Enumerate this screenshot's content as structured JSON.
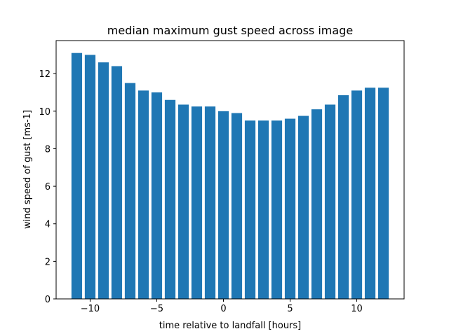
{
  "chart_data": {
    "type": "bar",
    "title": "median maximum gust speed across image",
    "xlabel": "time relative to landfall [hours]",
    "ylabel": "wind speed of gust [ms-1]",
    "x": [
      -11,
      -10,
      -9,
      -8,
      -7,
      -6,
      -5,
      -4,
      -3,
      -2,
      -1,
      0,
      1,
      2,
      3,
      4,
      5,
      6,
      7,
      8,
      9,
      10,
      11,
      12
    ],
    "values": [
      13.1,
      13.0,
      12.6,
      12.4,
      11.5,
      11.1,
      11.0,
      10.6,
      10.35,
      10.25,
      10.25,
      10.0,
      9.9,
      9.5,
      9.5,
      9.5,
      9.6,
      9.75,
      10.1,
      10.35,
      10.85,
      11.1,
      11.25,
      11.25
    ],
    "bar_color": "#1f77b4",
    "xlim": [
      -12.55,
      13.55
    ],
    "ylim": [
      0,
      13.76
    ],
    "xticks": [
      -10,
      -5,
      0,
      5,
      10
    ],
    "xtick_labels": [
      "−10",
      "−5",
      "0",
      "5",
      "10"
    ],
    "yticks": [
      0,
      2,
      4,
      6,
      8,
      10,
      12
    ],
    "ytick_labels": [
      "0",
      "2",
      "4",
      "6",
      "8",
      "10",
      "12"
    ],
    "grid": false,
    "legend": "none"
  }
}
